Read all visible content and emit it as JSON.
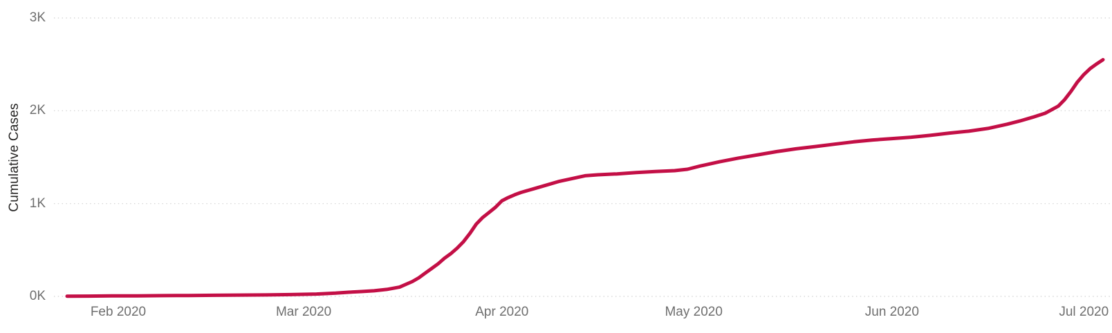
{
  "colors": {
    "line": "#C30F46",
    "gridline": "#D6D6D6",
    "tick_text": "#6E6E6E",
    "axis_title_text": "#252423",
    "background": "#FFFFFF"
  },
  "chart_data": {
    "type": "line",
    "title": "",
    "xlabel": "",
    "ylabel": "Cumulative Cases",
    "ylim": [
      0,
      3000
    ],
    "x_domain": [
      "2020-01-24",
      "2020-07-04"
    ],
    "grid": "horizontal-dotted",
    "legend": "none",
    "y_ticks": [
      {
        "label": "0K",
        "value": 0
      },
      {
        "label": "1K",
        "value": 1000
      },
      {
        "label": "2K",
        "value": 2000
      },
      {
        "label": "3K",
        "value": 3000
      }
    ],
    "x_ticks": [
      {
        "label": "Feb 2020",
        "date": "2020-02-01"
      },
      {
        "label": "Mar 2020",
        "date": "2020-03-01"
      },
      {
        "label": "Apr 2020",
        "date": "2020-04-01"
      },
      {
        "label": "May 2020",
        "date": "2020-05-01"
      },
      {
        "label": "Jun 2020",
        "date": "2020-06-01"
      },
      {
        "label": "Jul 2020",
        "date": "2020-07-01"
      }
    ],
    "series": [
      {
        "name": "Cumulative Cases",
        "points": [
          [
            "2020-01-24",
            2
          ],
          [
            "2020-01-27",
            3
          ],
          [
            "2020-01-31",
            5
          ],
          [
            "2020-02-04",
            6
          ],
          [
            "2020-02-08",
            8
          ],
          [
            "2020-02-12",
            10
          ],
          [
            "2020-02-16",
            12
          ],
          [
            "2020-02-20",
            14
          ],
          [
            "2020-02-24",
            16
          ],
          [
            "2020-02-28",
            19
          ],
          [
            "2020-03-03",
            25
          ],
          [
            "2020-03-06",
            35
          ],
          [
            "2020-03-08",
            45
          ],
          [
            "2020-03-10",
            52
          ],
          [
            "2020-03-12",
            60
          ],
          [
            "2020-03-14",
            75
          ],
          [
            "2020-03-16",
            100
          ],
          [
            "2020-03-17",
            130
          ],
          [
            "2020-03-18",
            160
          ],
          [
            "2020-03-19",
            200
          ],
          [
            "2020-03-20",
            250
          ],
          [
            "2020-03-21",
            300
          ],
          [
            "2020-03-22",
            350
          ],
          [
            "2020-03-23",
            410
          ],
          [
            "2020-03-24",
            460
          ],
          [
            "2020-03-25",
            520
          ],
          [
            "2020-03-26",
            590
          ],
          [
            "2020-03-27",
            680
          ],
          [
            "2020-03-28",
            780
          ],
          [
            "2020-03-29",
            850
          ],
          [
            "2020-03-30",
            905
          ],
          [
            "2020-03-31",
            960
          ],
          [
            "2020-04-01",
            1030
          ],
          [
            "2020-04-02",
            1065
          ],
          [
            "2020-04-03",
            1095
          ],
          [
            "2020-04-04",
            1120
          ],
          [
            "2020-04-06",
            1160
          ],
          [
            "2020-04-08",
            1200
          ],
          [
            "2020-04-10",
            1240
          ],
          [
            "2020-04-12",
            1270
          ],
          [
            "2020-04-14",
            1300
          ],
          [
            "2020-04-16",
            1310
          ],
          [
            "2020-04-19",
            1320
          ],
          [
            "2020-04-22",
            1335
          ],
          [
            "2020-04-25",
            1345
          ],
          [
            "2020-04-28",
            1355
          ],
          [
            "2020-04-30",
            1370
          ],
          [
            "2020-05-02",
            1405
          ],
          [
            "2020-05-05",
            1450
          ],
          [
            "2020-05-08",
            1490
          ],
          [
            "2020-05-11",
            1525
          ],
          [
            "2020-05-14",
            1560
          ],
          [
            "2020-05-17",
            1590
          ],
          [
            "2020-05-20",
            1615
          ],
          [
            "2020-05-23",
            1640
          ],
          [
            "2020-05-26",
            1665
          ],
          [
            "2020-05-29",
            1685
          ],
          [
            "2020-06-01",
            1700
          ],
          [
            "2020-06-04",
            1715
          ],
          [
            "2020-06-07",
            1735
          ],
          [
            "2020-06-10",
            1760
          ],
          [
            "2020-06-13",
            1780
          ],
          [
            "2020-06-16",
            1810
          ],
          [
            "2020-06-19",
            1855
          ],
          [
            "2020-06-21",
            1890
          ],
          [
            "2020-06-23",
            1930
          ],
          [
            "2020-06-25",
            1975
          ],
          [
            "2020-06-27",
            2050
          ],
          [
            "2020-06-28",
            2120
          ],
          [
            "2020-06-29",
            2210
          ],
          [
            "2020-06-30",
            2310
          ],
          [
            "2020-07-01",
            2390
          ],
          [
            "2020-07-02",
            2455
          ],
          [
            "2020-07-03",
            2505
          ],
          [
            "2020-07-04",
            2550
          ]
        ]
      }
    ]
  }
}
